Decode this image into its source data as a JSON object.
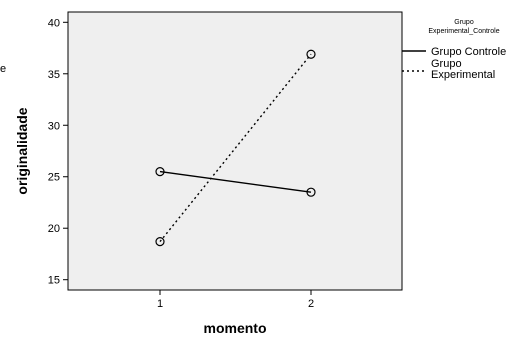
{
  "chart_data": {
    "type": "line",
    "xlabel": "momento",
    "ylabel": "originalidade",
    "categories": [
      "1",
      "2"
    ],
    "ylim": [
      14,
      41
    ],
    "yticks": [
      15,
      20,
      25,
      30,
      35,
      40
    ],
    "grid": false,
    "legend_placement": "right",
    "legend_title_lines": [
      "Grupo",
      "Experimental_Controle"
    ],
    "background": "#efefef",
    "line_color": "#000000",
    "series": [
      {
        "name": "Grupo Controle",
        "style": "solid",
        "values": [
          25.5,
          23.5
        ]
      },
      {
        "name": "Grupo Experimental",
        "style": "dotted",
        "values": [
          18.7,
          36.9
        ]
      }
    ]
  },
  "left_edge_text": "e"
}
